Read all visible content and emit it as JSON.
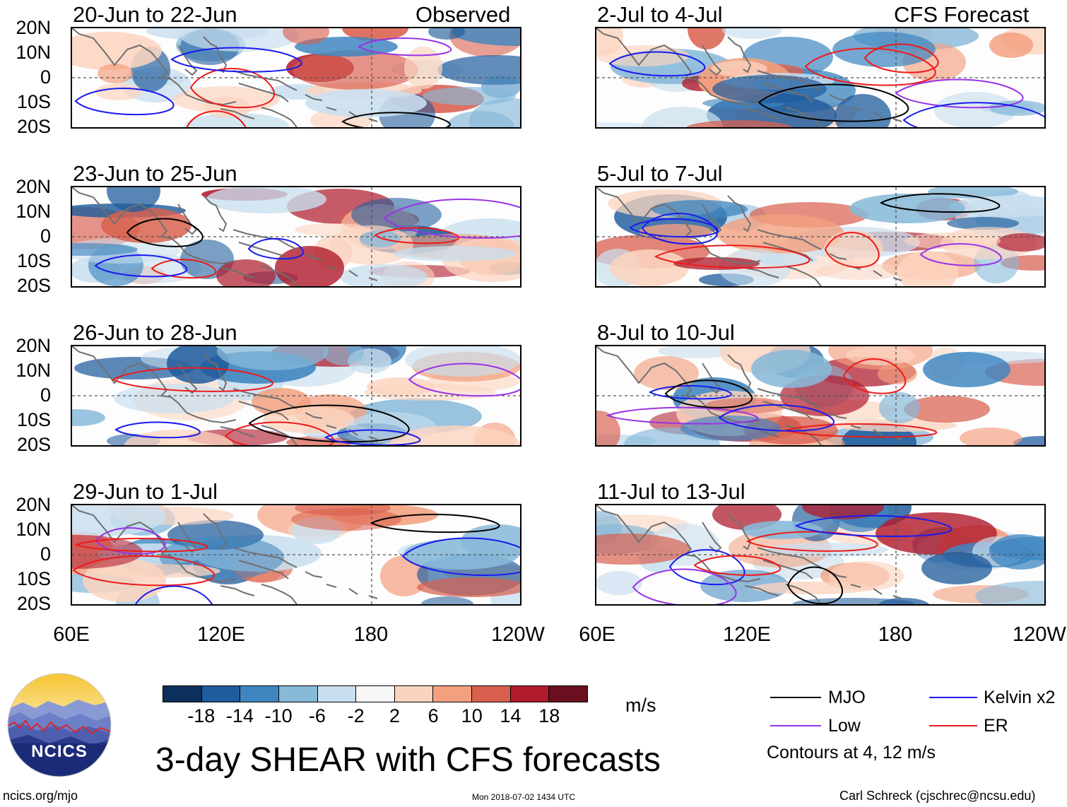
{
  "observed_tag": "Observed",
  "forecast_tag": "CFS Forecast",
  "panels_left": [
    {
      "title": "20-Jun to 22-Jun"
    },
    {
      "title": "23-Jun to 25-Jun"
    },
    {
      "title": "26-Jun to 28-Jun"
    },
    {
      "title": "29-Jun to 1-Jul"
    }
  ],
  "panels_right": [
    {
      "title": "2-Jul to 4-Jul"
    },
    {
      "title": "5-Jul to 7-Jul"
    },
    {
      "title": "8-Jul to 10-Jul"
    },
    {
      "title": "11-Jul to 13-Jul"
    }
  ],
  "lat_ticks": [
    "20N",
    "10N",
    "0",
    "10S",
    "20S"
  ],
  "lon_ticks": [
    "60E",
    "120E",
    "180",
    "120W"
  ],
  "colorbar": {
    "labels": [
      "-18",
      "-14",
      "-10",
      "-6",
      "-2",
      "2",
      "6",
      "10",
      "14",
      "18"
    ],
    "colors": [
      "#0d2f5c",
      "#1f5c9c",
      "#3f86c0",
      "#87b9d9",
      "#c9dfef",
      "#f7f7f7",
      "#fbd4bf",
      "#f3a07f",
      "#d9604f",
      "#b01c2e",
      "#6a0f1f"
    ],
    "units": "m/s"
  },
  "legend": {
    "items": [
      {
        "label": "MJO",
        "color": "#000000"
      },
      {
        "label": "Kelvin x2",
        "color": "#1a1aee"
      },
      {
        "label": "Low",
        "color": "#9933e6"
      },
      {
        "label": "ER",
        "color": "#ee1a1a"
      }
    ],
    "note": "Contours at 4, 12 m/s"
  },
  "main_title": "3-day SHEAR with CFS forecasts",
  "logo_text": "NCICS",
  "footer": {
    "website": "ncics.org/mjo",
    "timestamp": "Mon 2018-07-02 1434 UTC",
    "author": "Carl Schreck (cjschrec@ncsu.edu)"
  }
}
